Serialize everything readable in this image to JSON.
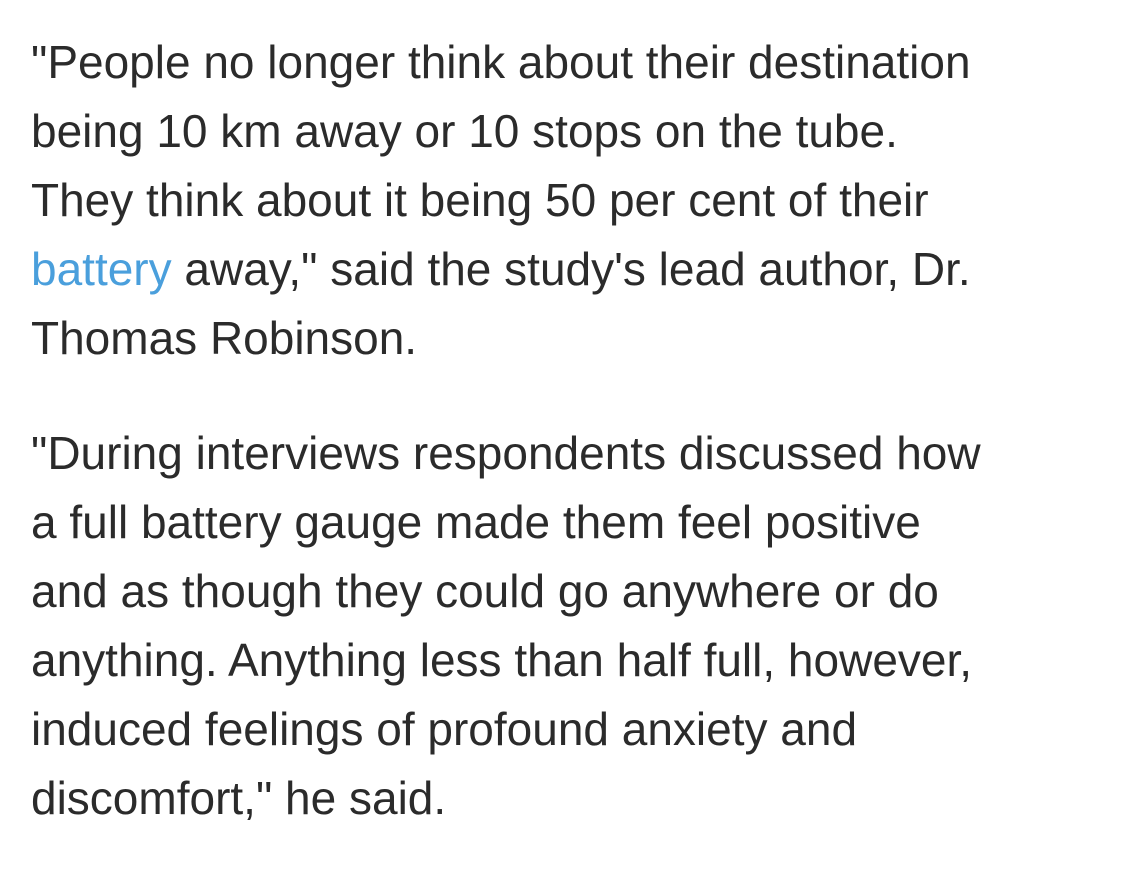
{
  "article": {
    "paragraph1": {
      "line1": "\"People no longer think about their destination",
      "line2": "being 10 km away or 10 stops on the tube.",
      "line3": "They think about it being 50 per cent of their",
      "line4_link": "battery",
      "line4_rest": " away,\" said the study's lead author, Dr.",
      "line5": "Thomas Robinson."
    },
    "paragraph2": {
      "line1": "\"During interviews respondents discussed how",
      "line2": "a full battery gauge made them feel positive",
      "line3": "and as though they could go anywhere or do",
      "line4": "anything. Anything less than half full, however,",
      "line5": "induced feelings of profound anxiety and",
      "line6": "discomfort,\" he said."
    }
  },
  "colors": {
    "text": "#2b2b2b",
    "link": "#4a9fdc",
    "background": "#ffffff"
  }
}
